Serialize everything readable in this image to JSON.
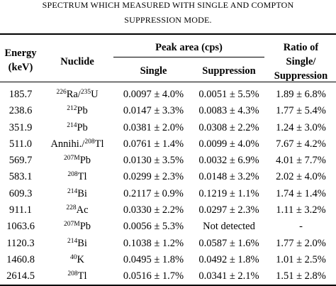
{
  "caption": {
    "line1": "SPECTRUM WHICH MEASURED WITH SINGLE AND COMPTON",
    "line2": "SUPPRESSION MODE."
  },
  "headers": {
    "energy_line1": "Energy",
    "energy_line2": "(keV)",
    "nuclide": "Nuclide",
    "peak_area": "Peak area (cps)",
    "single": "Single",
    "suppression": "Suppression",
    "ratio_line1": "Ratio of",
    "ratio_line2": "Single/",
    "ratio_line3": "Suppression"
  },
  "rows": [
    {
      "energy": "185.7",
      "nuclide": [
        {
          "sup": "226"
        },
        {
          "t": "Ra/"
        },
        {
          "sup": "235"
        },
        {
          "t": "U"
        }
      ],
      "single": "0.0097 ± 4.0%",
      "suppression": "0.0051 ± 5.5%",
      "ratio": "1.89 ± 6.8%"
    },
    {
      "energy": "238.6",
      "nuclide": [
        {
          "sup": "212"
        },
        {
          "t": "Pb"
        }
      ],
      "single": "0.0147 ± 3.3%",
      "suppression": "0.0083 ± 4.3%",
      "ratio": "1.77 ± 5.4%"
    },
    {
      "energy": "351.9",
      "nuclide": [
        {
          "sup": "214"
        },
        {
          "t": "Pb"
        }
      ],
      "single": "0.0381 ± 2.0%",
      "suppression": "0.0308 ± 2.2%",
      "ratio": "1.24 ± 3.0%"
    },
    {
      "energy": "511.0",
      "nuclide": [
        {
          "t": "Annihi./"
        },
        {
          "sup": "208"
        },
        {
          "t": "Tl"
        }
      ],
      "single": "0.0761 ± 1.4%",
      "suppression": "0.0099 ± 4.0%",
      "ratio": "7.67 ± 4.2%"
    },
    {
      "energy": "569.7",
      "nuclide": [
        {
          "sup": "207M"
        },
        {
          "t": "Pb"
        }
      ],
      "single": "0.0130 ± 3.5%",
      "suppression": "0.0032 ± 6.9%",
      "ratio": "4.01 ± 7.7%"
    },
    {
      "energy": "583.1",
      "nuclide": [
        {
          "sup": "208"
        },
        {
          "t": "Tl"
        }
      ],
      "single": "0.0299 ± 2.3%",
      "suppression": "0.0148 ± 3.2%",
      "ratio": "2.02 ± 4.0%"
    },
    {
      "energy": "609.3",
      "nuclide": [
        {
          "sup": "214"
        },
        {
          "t": "Bi"
        }
      ],
      "single": "0.2117 ± 0.9%",
      "suppression": "0.1219 ± 1.1%",
      "ratio": "1.74 ± 1.4%"
    },
    {
      "energy": "911.1",
      "nuclide": [
        {
          "sup": "228"
        },
        {
          "t": "Ac"
        }
      ],
      "single": "0.0330 ± 2.2%",
      "suppression": "0.0297 ± 2.3%",
      "ratio": "1.11 ± 3.2%"
    },
    {
      "energy": "1063.6",
      "nuclide": [
        {
          "sup": "207M"
        },
        {
          "t": "Pb"
        }
      ],
      "single": "0.0056 ± 5.3%",
      "suppression": "Not detected",
      "ratio": "-"
    },
    {
      "energy": "1120.3",
      "nuclide": [
        {
          "sup": "214"
        },
        {
          "t": "Bi"
        }
      ],
      "single": "0.1038 ± 1.2%",
      "suppression": "0.0587 ± 1.6%",
      "ratio": "1.77 ± 2.0%"
    },
    {
      "energy": "1460.8",
      "nuclide": [
        {
          "sup": "40"
        },
        {
          "t": "K"
        }
      ],
      "single": "0.0495 ± 1.8%",
      "suppression": "0.0492 ± 1.8%",
      "ratio": "1.01 ± 2.5%"
    },
    {
      "energy": "2614.5",
      "nuclide": [
        {
          "sup": "208"
        },
        {
          "t": "Tl"
        }
      ],
      "single": "0.0516 ± 1.7%",
      "suppression": "0.0341 ± 2.1%",
      "ratio": "1.51 ± 2.8%"
    }
  ]
}
